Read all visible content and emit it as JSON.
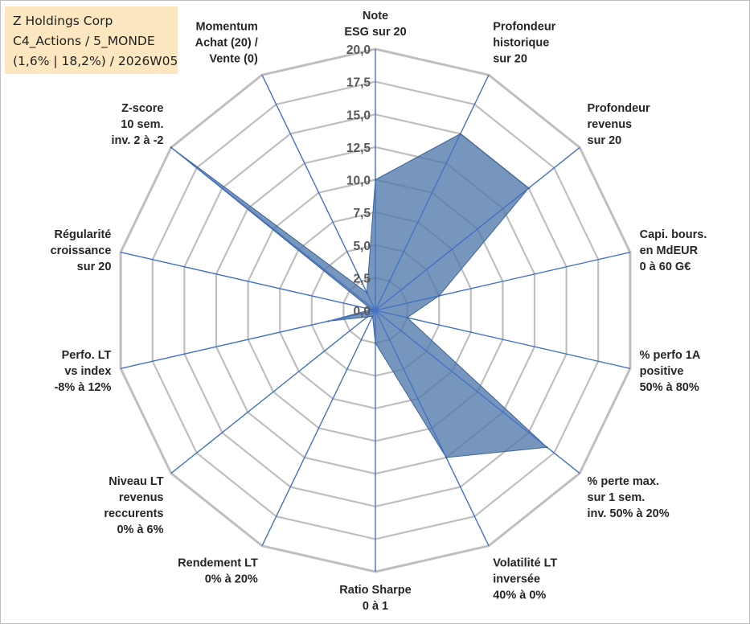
{
  "header": {
    "lines": [
      "Z Holdings Corp",
      "C4_Actions / 5_MONDE",
      "(1,6% | 18,2%) / 2026W05"
    ]
  },
  "chart_data": {
    "type": "radar",
    "title": "",
    "rmin": 0,
    "rmax": 20,
    "step": 2.5,
    "tick_labels": [
      "0,0",
      "2,5",
      "5,0",
      "7,5",
      "10,0",
      "12,5",
      "15,0",
      "17,5",
      "20,0"
    ],
    "axes": [
      {
        "label": [
          "Note",
          "ESG sur 20"
        ],
        "value": 10.0
      },
      {
        "label": [
          "Profondeur",
          "historique",
          "sur 20"
        ],
        "value": 15.0
      },
      {
        "label": [
          "Profondeur",
          "revenus",
          "sur 20"
        ],
        "value": 15.0
      },
      {
        "label": [
          "Capi. bours.",
          "en MdEUR",
          "0 à 60 G€"
        ],
        "value": 5.0
      },
      {
        "label": [
          "% perfo 1A",
          "positive",
          "50% à 80%"
        ],
        "value": 2.5
      },
      {
        "label": [
          "% perte max.",
          "sur 1 sem.",
          "inv. 50% à 20%"
        ],
        "value": 16.8
      },
      {
        "label": [
          "Volatilité LT",
          "inversée",
          "40% à 0%"
        ],
        "value": 12.5
      },
      {
        "label": [
          "Ratio Sharpe",
          "0 à 1"
        ],
        "value": 2.5
      },
      {
        "label": [
          "Rendement LT",
          "0% à 20%"
        ],
        "value": 0.5
      },
      {
        "label": [
          "Niveau LT",
          "revenus",
          "reccurents",
          "0% à 6%"
        ],
        "value": 0.8
      },
      {
        "label": [
          "Perfo. LT",
          "vs index",
          "-8% à 12%"
        ],
        "value": 3.7
      },
      {
        "label": [
          "Régularité",
          "croissance",
          "sur 20"
        ],
        "value": 0.3
      },
      {
        "label": [
          "Z-score",
          "10 sem.",
          "inv. 2 à -2"
        ],
        "value": 20.0
      },
      {
        "label": [
          "Momentum",
          "Achat (20) /",
          "Vente (0)"
        ],
        "value": 1.5
      }
    ],
    "grid": true,
    "legend": "none",
    "colors": {
      "fill": "#4f78aa",
      "axis": "#4472c4",
      "grid": "#bfbfbf"
    }
  }
}
